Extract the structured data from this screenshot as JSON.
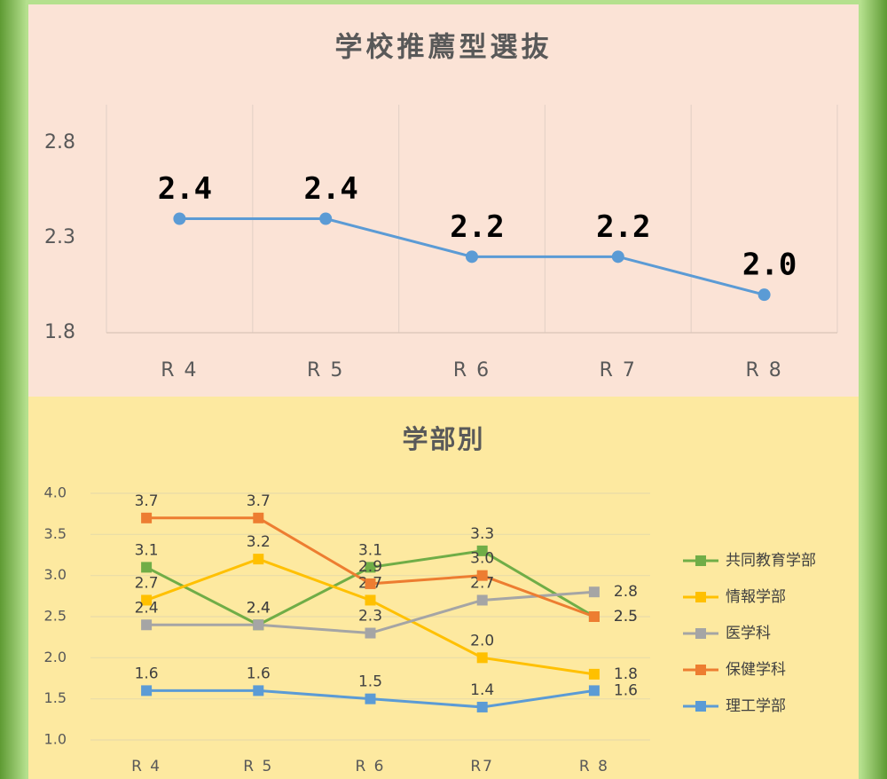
{
  "chart_data": [
    {
      "type": "line",
      "title": "学校推薦型選抜",
      "categories": [
        "R 4",
        "R 5",
        "R 6",
        "R 7",
        "R 8"
      ],
      "values": [
        2.4,
        2.4,
        2.2,
        2.2,
        2.0
      ],
      "value_labels": [
        "2.4",
        "2.4",
        "2.2",
        "2.2",
        "2.0"
      ],
      "color": "#5b9bd5",
      "marker": "circle",
      "ylim": [
        1.8,
        3.0
      ],
      "yticks": [
        1.8,
        2.3,
        2.8
      ],
      "grid": "vertical"
    },
    {
      "type": "line",
      "title": "学部別",
      "categories": [
        "R 4",
        "R 5",
        "R 6",
        "R7",
        "R 8"
      ],
      "series": [
        {
          "name": "共同教育学部",
          "color": "#70ad47",
          "values": [
            3.1,
            2.4,
            3.1,
            3.3,
            2.5
          ],
          "value_labels": [
            "3.1",
            "2.4",
            "3.1",
            "3.3",
            "2.5"
          ]
        },
        {
          "name": "情報学部",
          "color": "#ffc000",
          "values": [
            2.7,
            3.2,
            2.7,
            2.0,
            1.8
          ],
          "value_labels": [
            "2.7",
            "3.2",
            "2.7",
            "2.0",
            "1.8"
          ]
        },
        {
          "name": "医学科",
          "color": "#a5a5a5",
          "values": [
            2.4,
            2.4,
            2.3,
            2.7,
            2.8
          ],
          "value_labels": [
            "2.4",
            "2.4",
            "2.3",
            "2.7",
            "2.8"
          ]
        },
        {
          "name": "保健学科",
          "color": "#ed7d31",
          "values": [
            3.7,
            3.7,
            2.9,
            3.0,
            2.5
          ],
          "value_labels": [
            "3.7",
            "3.7",
            "2.9",
            "3.0",
            "2.5"
          ]
        },
        {
          "name": "理工学部",
          "color": "#5b9bd5",
          "values": [
            1.6,
            1.6,
            1.5,
            1.4,
            1.6
          ],
          "value_labels": [
            "1.6",
            "1.6",
            "1.5",
            "1.4",
            "1.6"
          ]
        }
      ],
      "marker": "square",
      "ylim": [
        1.0,
        4.0
      ],
      "yticks": [
        {
          "value": 1.0,
          "label": "1.0"
        },
        1.5,
        {
          "value": 2.0,
          "label": "2.0"
        },
        2.5,
        {
          "value": 3.0,
          "label": "3.0"
        },
        3.5,
        {
          "value": 4.0,
          "label": "4.0"
        }
      ],
      "grid": "horizontal",
      "legend": "right"
    }
  ]
}
